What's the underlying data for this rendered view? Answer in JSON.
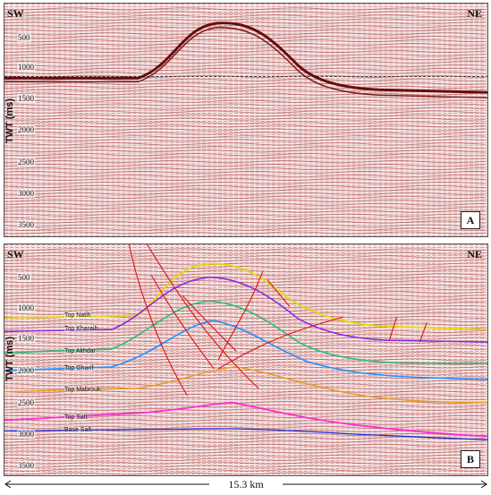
{
  "panel_a": {
    "left_label": "SW",
    "right_label": "NE",
    "panel_tag": "A",
    "axis_title": "TWT (ms)",
    "ticks": [
      "500",
      "1000",
      "1500",
      "2000",
      "2500",
      "3000",
      "3500"
    ]
  },
  "panel_b": {
    "left_label": "SW",
    "right_label": "NE",
    "panel_tag": "B",
    "axis_title": "TWT (ms)",
    "ticks": [
      "500",
      "1000",
      "1500",
      "2000",
      "2500",
      "3000",
      "3500"
    ],
    "horizons": [
      {
        "name": "Top Natih",
        "color": "#e8d800"
      },
      {
        "name": "Top Kharaib",
        "color": "#8a2be2"
      },
      {
        "name": "Top Akhdar",
        "color": "#1fbf7a"
      },
      {
        "name": "Top Gharif",
        "color": "#1e90ff"
      },
      {
        "name": "Top Mabrouk",
        "color": "#e89a10"
      },
      {
        "name": "Top Salt",
        "color": "#ff2bd6"
      },
      {
        "name": "Base Salt",
        "color": "#1a2bd0"
      }
    ],
    "fault_color": "#e01010"
  },
  "scale_label": "15.3 km"
}
